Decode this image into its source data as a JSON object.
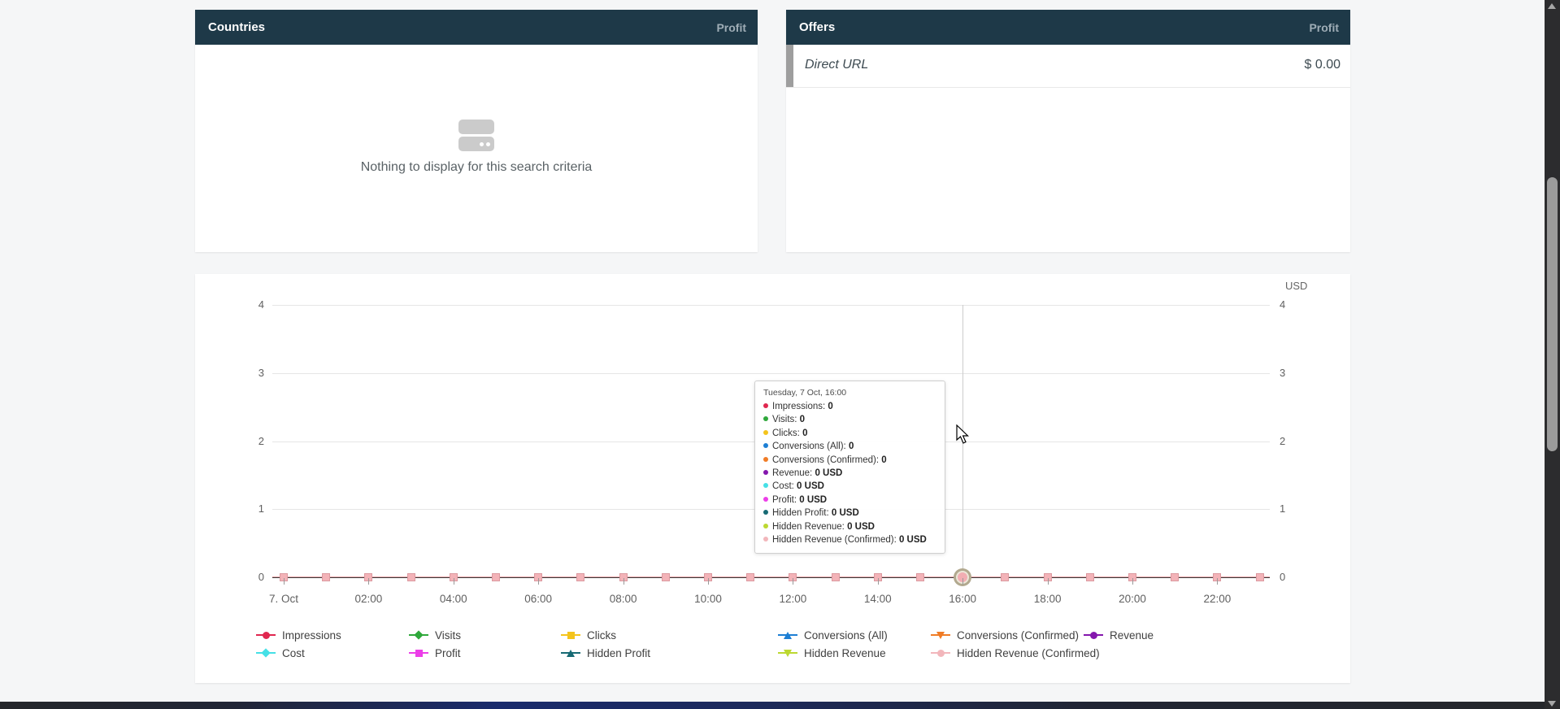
{
  "colors": {
    "panel_header_bg": "#1e3948",
    "header_metric": "#9fadb6",
    "grid_line": "#e6e6e6",
    "axis_zero_line": "#3a3a3a",
    "page_background": "#f5f6f7"
  },
  "panels": {
    "countries": {
      "title": "Countries",
      "metric": "Profit",
      "empty_message": "Nothing to display for this search criteria"
    },
    "offers": {
      "title": "Offers",
      "metric": "Profit",
      "rows": [
        {
          "name": "Direct URL",
          "value": "$ 0.00"
        }
      ]
    }
  },
  "chart": {
    "unit": "USD",
    "y_tick_labels": [
      "4",
      "3",
      "2",
      "1",
      "0"
    ],
    "x_tick_labels": [
      "7. Oct",
      "02:00",
      "04:00",
      "06:00",
      "08:00",
      "10:00",
      "12:00",
      "14:00",
      "16:00",
      "18:00",
      "20:00",
      "22:00"
    ],
    "hover_index": 16
  },
  "tooltip": {
    "title": "Tuesday, 7 Oct, 16:00",
    "items": [
      {
        "label": "Impressions",
        "value": "0",
        "color": "#e0274f"
      },
      {
        "label": "Visits",
        "value": "0",
        "color": "#2fa83b"
      },
      {
        "label": "Clicks",
        "value": "0",
        "color": "#f4c41c"
      },
      {
        "label": "Conversions (All)",
        "value": "0",
        "color": "#1d7fd4"
      },
      {
        "label": "Conversions (Confirmed)",
        "value": "0",
        "color": "#f07c26"
      },
      {
        "label": "Revenue",
        "value": "0 USD",
        "color": "#8417ad"
      },
      {
        "label": "Cost",
        "value": "0 USD",
        "color": "#45e0e6"
      },
      {
        "label": "Profit",
        "value": "0 USD",
        "color": "#ec3ee8"
      },
      {
        "label": "Hidden Profit",
        "value": "0 USD",
        "color": "#176a74"
      },
      {
        "label": "Hidden Revenue",
        "value": "0 USD",
        "color": "#bcd831"
      },
      {
        "label": "Hidden Revenue (Confirmed)",
        "value": "0 USD",
        "color": "#f2b6bb"
      }
    ]
  },
  "legend": {
    "rows": [
      [
        {
          "label": "Impressions",
          "color": "#e0274f",
          "shape": "circle"
        },
        {
          "label": "Visits",
          "color": "#2fa83b",
          "shape": "diamond"
        },
        {
          "label": "Clicks",
          "color": "#f4c41c",
          "shape": "square"
        },
        {
          "label": "Conversions (All)",
          "color": "#1d7fd4",
          "shape": "tri-up"
        },
        {
          "label": "Conversions (Confirmed)",
          "color": "#f07c26",
          "shape": "tri-down"
        },
        {
          "label": "Revenue",
          "color": "#8417ad",
          "shape": "circle"
        }
      ],
      [
        {
          "label": "Cost",
          "color": "#45e0e6",
          "shape": "diamond"
        },
        {
          "label": "Profit",
          "color": "#ec3ee8",
          "shape": "square"
        },
        {
          "label": "Hidden Profit",
          "color": "#176a74",
          "shape": "tri-up"
        },
        {
          "label": "Hidden Revenue",
          "color": "#bcd831",
          "shape": "tri-down"
        },
        {
          "label": "Hidden Revenue (Confirmed)",
          "color": "#f2b6bb",
          "shape": "circle"
        }
      ]
    ]
  },
  "chart_data": {
    "type": "line",
    "title": "",
    "date": "7 Oct",
    "categories": [
      "00:00",
      "01:00",
      "02:00",
      "03:00",
      "04:00",
      "05:00",
      "06:00",
      "07:00",
      "08:00",
      "09:00",
      "10:00",
      "11:00",
      "12:00",
      "13:00",
      "14:00",
      "15:00",
      "16:00",
      "17:00",
      "18:00",
      "19:00",
      "20:00",
      "21:00",
      "22:00",
      "23:00"
    ],
    "visible_x_tick_labels": [
      "7. Oct",
      "02:00",
      "04:00",
      "06:00",
      "08:00",
      "10:00",
      "12:00",
      "14:00",
      "16:00",
      "18:00",
      "20:00",
      "22:00"
    ],
    "ylim": [
      0,
      4
    ],
    "y_ticks": [
      0,
      1,
      2,
      3,
      4
    ],
    "right_axis_title": "USD",
    "grid": true,
    "legend_position": "bottom",
    "hover_point": {
      "category_index": 16,
      "label": "Tuesday, 7 Oct, 16:00"
    },
    "series": [
      {
        "name": "Impressions",
        "color": "#e0274f",
        "marker": "circle",
        "values": [
          0,
          0,
          0,
          0,
          0,
          0,
          0,
          0,
          0,
          0,
          0,
          0,
          0,
          0,
          0,
          0,
          0,
          0,
          0,
          0,
          0,
          0,
          0,
          0
        ]
      },
      {
        "name": "Visits",
        "color": "#2fa83b",
        "marker": "diamond",
        "values": [
          0,
          0,
          0,
          0,
          0,
          0,
          0,
          0,
          0,
          0,
          0,
          0,
          0,
          0,
          0,
          0,
          0,
          0,
          0,
          0,
          0,
          0,
          0,
          0
        ]
      },
      {
        "name": "Clicks",
        "color": "#f4c41c",
        "marker": "square",
        "values": [
          0,
          0,
          0,
          0,
          0,
          0,
          0,
          0,
          0,
          0,
          0,
          0,
          0,
          0,
          0,
          0,
          0,
          0,
          0,
          0,
          0,
          0,
          0,
          0
        ]
      },
      {
        "name": "Conversions (All)",
        "color": "#1d7fd4",
        "marker": "triangle-up",
        "values": [
          0,
          0,
          0,
          0,
          0,
          0,
          0,
          0,
          0,
          0,
          0,
          0,
          0,
          0,
          0,
          0,
          0,
          0,
          0,
          0,
          0,
          0,
          0,
          0
        ]
      },
      {
        "name": "Conversions (Confirmed)",
        "color": "#f07c26",
        "marker": "triangle-down",
        "values": [
          0,
          0,
          0,
          0,
          0,
          0,
          0,
          0,
          0,
          0,
          0,
          0,
          0,
          0,
          0,
          0,
          0,
          0,
          0,
          0,
          0,
          0,
          0,
          0
        ]
      },
      {
        "name": "Revenue",
        "color": "#8417ad",
        "marker": "circle",
        "values": [
          0,
          0,
          0,
          0,
          0,
          0,
          0,
          0,
          0,
          0,
          0,
          0,
          0,
          0,
          0,
          0,
          0,
          0,
          0,
          0,
          0,
          0,
          0,
          0
        ]
      },
      {
        "name": "Cost",
        "color": "#45e0e6",
        "marker": "diamond",
        "values": [
          0,
          0,
          0,
          0,
          0,
          0,
          0,
          0,
          0,
          0,
          0,
          0,
          0,
          0,
          0,
          0,
          0,
          0,
          0,
          0,
          0,
          0,
          0,
          0
        ]
      },
      {
        "name": "Profit",
        "color": "#ec3ee8",
        "marker": "square",
        "values": [
          0,
          0,
          0,
          0,
          0,
          0,
          0,
          0,
          0,
          0,
          0,
          0,
          0,
          0,
          0,
          0,
          0,
          0,
          0,
          0,
          0,
          0,
          0,
          0
        ]
      },
      {
        "name": "Hidden Profit",
        "color": "#176a74",
        "marker": "triangle-up",
        "values": [
          0,
          0,
          0,
          0,
          0,
          0,
          0,
          0,
          0,
          0,
          0,
          0,
          0,
          0,
          0,
          0,
          0,
          0,
          0,
          0,
          0,
          0,
          0,
          0
        ]
      },
      {
        "name": "Hidden Revenue",
        "color": "#bcd831",
        "marker": "triangle-down",
        "values": [
          0,
          0,
          0,
          0,
          0,
          0,
          0,
          0,
          0,
          0,
          0,
          0,
          0,
          0,
          0,
          0,
          0,
          0,
          0,
          0,
          0,
          0,
          0,
          0
        ]
      },
      {
        "name": "Hidden Revenue (Confirmed)",
        "color": "#f2b6bb",
        "marker": "circle",
        "values": [
          0,
          0,
          0,
          0,
          0,
          0,
          0,
          0,
          0,
          0,
          0,
          0,
          0,
          0,
          0,
          0,
          0,
          0,
          0,
          0,
          0,
          0,
          0,
          0
        ]
      }
    ]
  }
}
